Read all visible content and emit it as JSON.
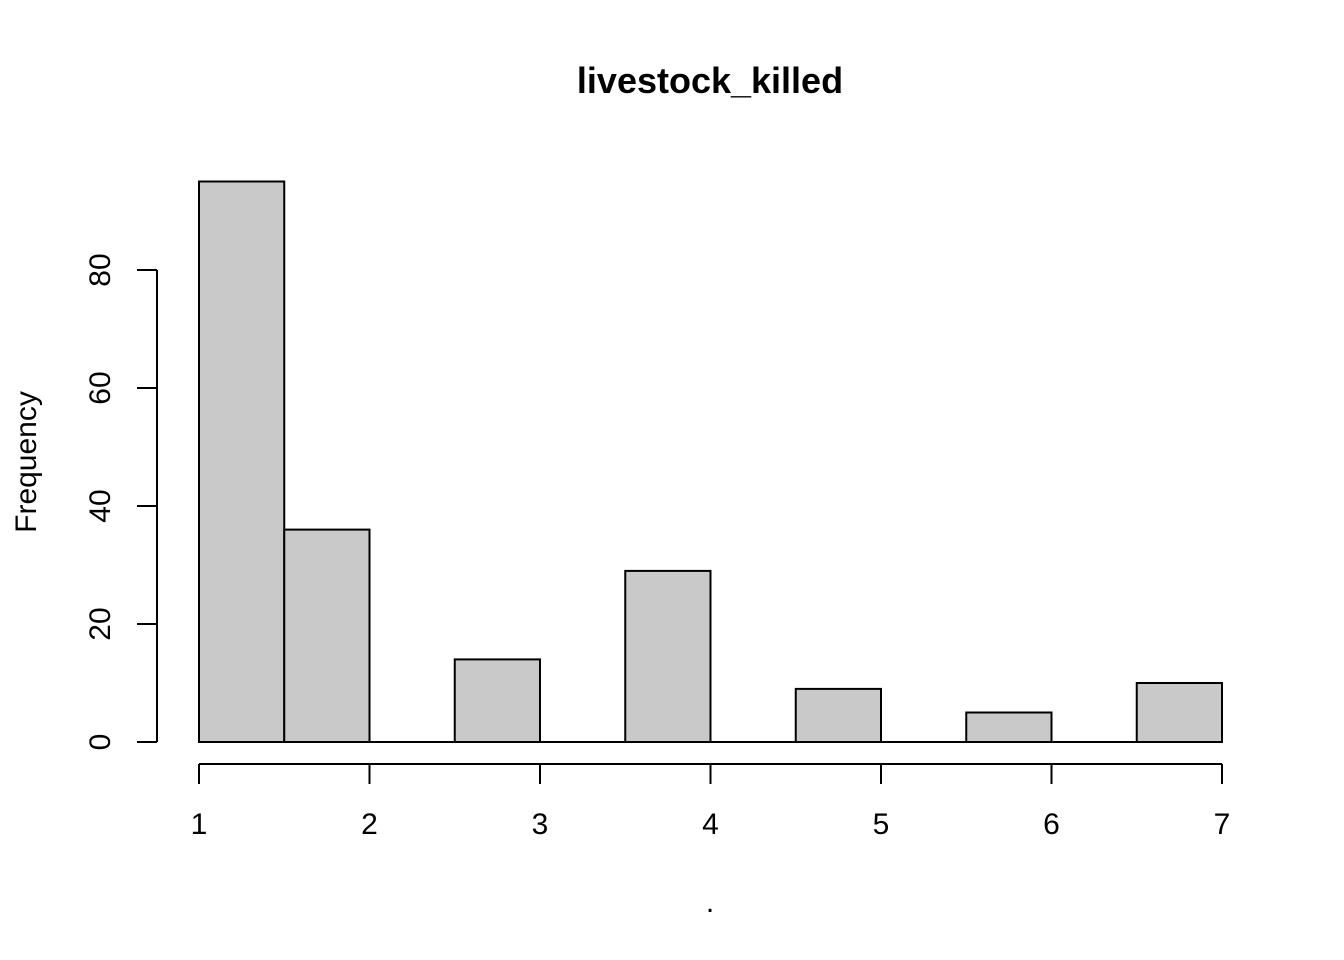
{
  "chart_data": {
    "type": "bar",
    "title": "livestock_killed",
    "xlabel": ".",
    "ylabel": "Frequency",
    "bins": [
      {
        "start": 1.0,
        "end": 1.5,
        "count": 95
      },
      {
        "start": 1.5,
        "end": 2.0,
        "count": 36
      },
      {
        "start": 2.0,
        "end": 2.5,
        "count": 0
      },
      {
        "start": 2.5,
        "end": 3.0,
        "count": 14
      },
      {
        "start": 3.0,
        "end": 3.5,
        "count": 0
      },
      {
        "start": 3.5,
        "end": 4.0,
        "count": 29
      },
      {
        "start": 4.0,
        "end": 4.5,
        "count": 0
      },
      {
        "start": 4.5,
        "end": 5.0,
        "count": 9
      },
      {
        "start": 5.0,
        "end": 5.5,
        "count": 0
      },
      {
        "start": 5.5,
        "end": 6.0,
        "count": 5
      },
      {
        "start": 6.0,
        "end": 6.5,
        "count": 0
      },
      {
        "start": 6.5,
        "end": 7.0,
        "count": 10
      }
    ],
    "x_ticks": [
      "1",
      "2",
      "3",
      "4",
      "5",
      "6",
      "7"
    ],
    "y_ticks": [
      "0",
      "20",
      "40",
      "60",
      "80"
    ],
    "xlim": [
      1,
      7
    ],
    "ylim": [
      0,
      95
    ],
    "bar_fill": "#c9c9c9",
    "bar_stroke": "#000000",
    "grid": false,
    "legend": "none"
  }
}
